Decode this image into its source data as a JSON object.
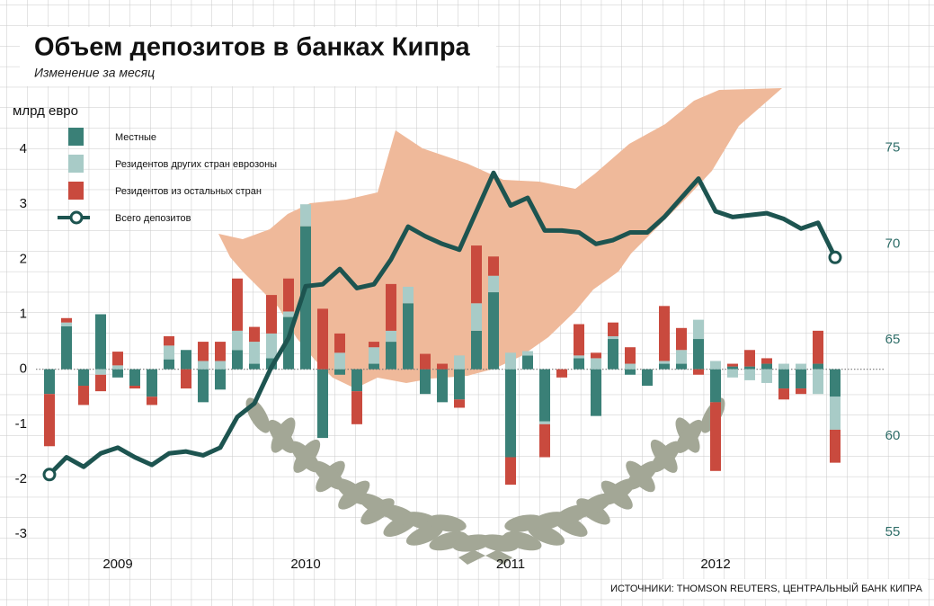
{
  "chart_data": {
    "type": "bar",
    "title": "Объем депозитов в банках Кипра",
    "subtitle": "Изменение за месяц",
    "y_label": "млрд евро",
    "source": "ИСТОЧНИКИ: THOMSON REUTERS, ЦЕНТРАЛЬНЫЙ БАНК КИПРА",
    "categories": [
      null,
      null,
      null,
      null,
      "2009",
      null,
      null,
      null,
      null,
      null,
      null,
      null,
      null,
      null,
      null,
      "2010",
      null,
      null,
      null,
      null,
      null,
      null,
      null,
      null,
      null,
      null,
      null,
      "2011",
      null,
      null,
      null,
      null,
      null,
      null,
      null,
      null,
      null,
      null,
      null,
      "2012",
      null,
      null,
      null,
      null,
      null,
      null,
      null
    ],
    "series": [
      {
        "name": "Местные",
        "color": "#3a8077",
        "values": [
          -0.45,
          0.78,
          -0.3,
          1.0,
          -0.15,
          -0.3,
          -0.5,
          0.18,
          0.35,
          -0.6,
          -0.37,
          0.35,
          0.1,
          0.2,
          0.95,
          2.6,
          -1.25,
          -0.1,
          -0.4,
          0.1,
          0.5,
          1.2,
          -0.45,
          -0.6,
          -0.55,
          0.7,
          1.4,
          -1.6,
          0.25,
          -0.95,
          0,
          0.2,
          -0.85,
          0.55,
          -0.1,
          -0.3,
          0.1,
          0.1,
          0.55,
          -0.6,
          0.05,
          0.05,
          0.1,
          -0.35,
          -0.35,
          0.1,
          -0.5
        ]
      },
      {
        "name": "Резидентов других стран еврозоны",
        "color": "#a8cbc7",
        "values": [
          0,
          0.07,
          0,
          -0.1,
          0.07,
          0,
          0,
          0.25,
          0,
          0.15,
          0.15,
          0.35,
          0.4,
          0.45,
          0.1,
          0.4,
          0,
          0.3,
          0,
          0.3,
          0.2,
          0.3,
          0,
          0,
          0.25,
          0.5,
          0.3,
          0.3,
          0.08,
          -0.05,
          0,
          0.05,
          0.2,
          0.05,
          0.1,
          0,
          0.05,
          0.25,
          0.35,
          0.15,
          -0.15,
          -0.2,
          -0.25,
          0.1,
          0.1,
          -0.45,
          -0.6
        ]
      },
      {
        "name": "Резидентов из остальных стран",
        "color": "#c94a3e",
        "values": [
          -0.95,
          0.08,
          -0.35,
          -0.3,
          0.25,
          -0.05,
          -0.15,
          0.17,
          -0.35,
          0.35,
          0.35,
          0.95,
          0.27,
          0.7,
          0.6,
          0,
          1.1,
          0.35,
          -0.6,
          0.1,
          0.85,
          0,
          0.28,
          0.1,
          -0.15,
          1.05,
          0.35,
          -0.5,
          0,
          -0.6,
          -0.15,
          0.57,
          0.1,
          0.25,
          0.3,
          0,
          1.0,
          0.4,
          -0.1,
          -1.25,
          0.05,
          0.3,
          0.1,
          -0.2,
          -0.1,
          0.6,
          -0.6
        ]
      },
      {
        "name": "Всего депозитов",
        "type": "line",
        "axis": "y2",
        "color": "#1d5450",
        "values": [
          58.0,
          58.9,
          58.4,
          59.1,
          59.4,
          58.9,
          58.5,
          59.1,
          59.2,
          59.0,
          59.4,
          61.0,
          61.7,
          63.6,
          65.1,
          67.8,
          67.9,
          68.7,
          67.7,
          67.9,
          69.2,
          70.9,
          70.4,
          70.0,
          69.7,
          71.7,
          73.7,
          72.0,
          72.4,
          70.7,
          70.7,
          70.6,
          70.0,
          70.2,
          70.6,
          70.6,
          71.4,
          72.4,
          73.4,
          71.7,
          71.4,
          71.5,
          71.6,
          71.3,
          70.8,
          71.1,
          69.3
        ]
      }
    ],
    "ylim": [
      -3.75,
      4.9
    ],
    "yticks": [
      -3,
      -2,
      -1,
      0,
      1,
      2,
      3,
      4
    ],
    "y2lim": [
      52.75,
      77.5
    ],
    "y2ticks": [
      55,
      60,
      65,
      70,
      75
    ]
  }
}
